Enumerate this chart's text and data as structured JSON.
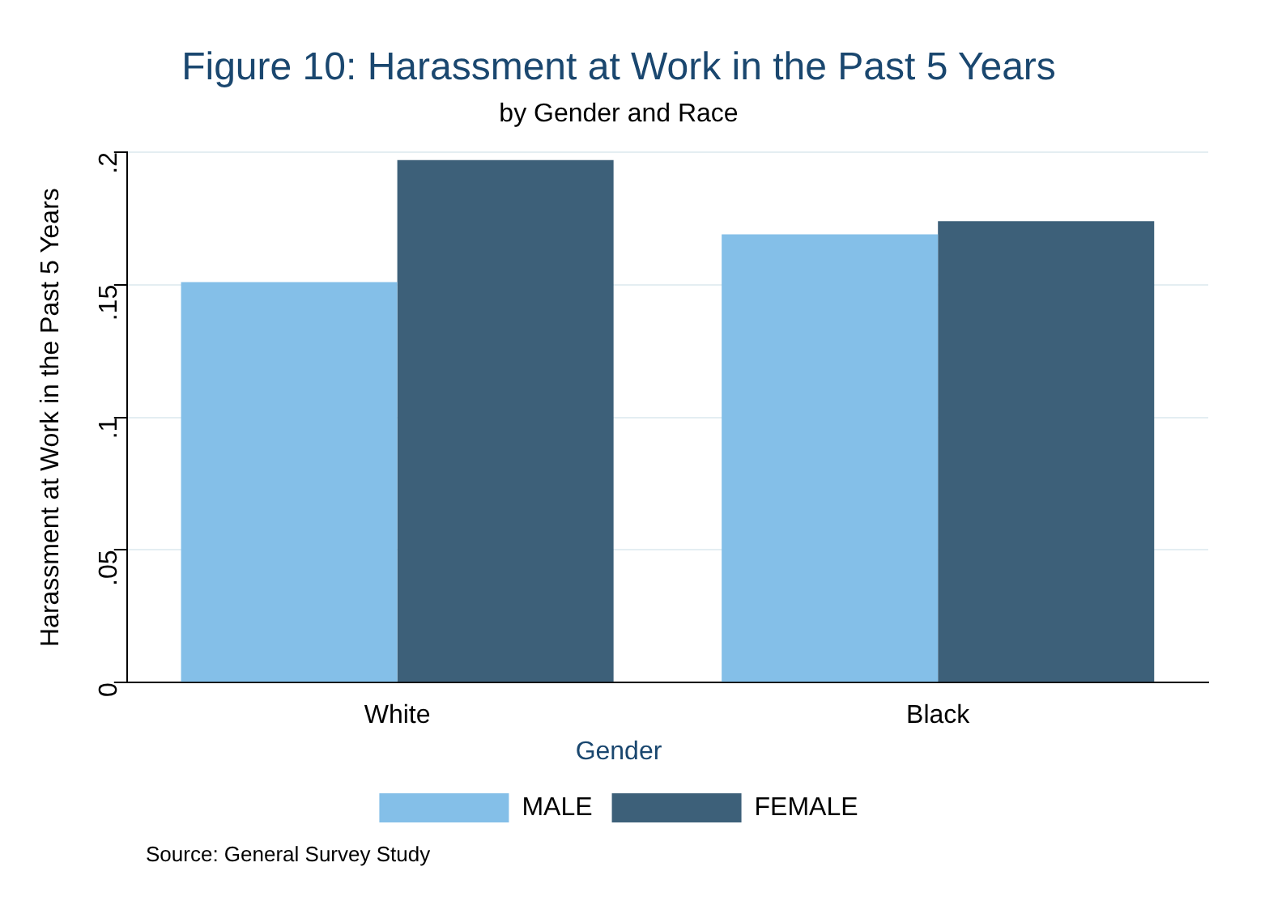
{
  "chart_data": {
    "type": "bar",
    "title": "Figure 10: Harassment at Work in the Past 5 Years",
    "subtitle": "by Gender and Race",
    "ylabel": "Harassment at Work in the Past 5 Years",
    "legend_title": "Gender",
    "categories": [
      "White",
      "Black"
    ],
    "series": [
      {
        "name": "MALE",
        "color": "#84bfe8",
        "values": [
          0.151,
          0.169
        ]
      },
      {
        "name": "FEMALE",
        "color": "#3d6079",
        "values": [
          0.197,
          0.174
        ]
      }
    ],
    "ylim": [
      0,
      0.2
    ],
    "yticks": [
      0,
      {
        "value": 0.05,
        "label": ".05"
      },
      {
        "value": 0.1,
        "label": ".1"
      },
      {
        "value": 0.15,
        "label": ".15"
      },
      {
        "value": 0.2,
        "label": ".2"
      }
    ],
    "grid": "y",
    "legend": "bottom",
    "annotations": [
      "Source: General Survey Study"
    ]
  }
}
